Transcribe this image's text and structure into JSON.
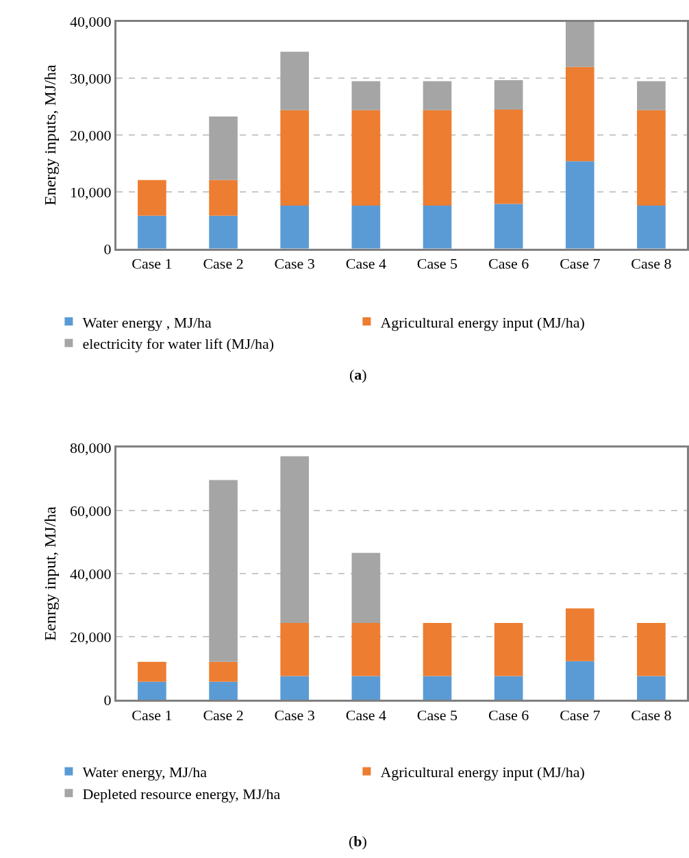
{
  "chart_data": [
    {
      "type": "bar",
      "stacked": true,
      "ylabel": "Energy inputs, MJ/ha",
      "categories": [
        "Case 1",
        "Case 2",
        "Case 3",
        "Case 4",
        "Case 5",
        "Case 6",
        "Case 7",
        "Case 8"
      ],
      "series": [
        {
          "name": "Water energy , MJ/ha",
          "color": "#5b9bd5",
          "values": [
            5800,
            5800,
            7600,
            7600,
            7600,
            7900,
            15400,
            7600
          ]
        },
        {
          "name": "Agricultural energy input (MJ/ha)",
          "color": "#ed7d31",
          "values": [
            6300,
            6300,
            16800,
            16800,
            16800,
            16600,
            16600,
            16800
          ]
        },
        {
          "name": "electricity for water lift (MJ/ha)",
          "color": "#a5a5a5",
          "values": [
            null,
            11200,
            10300,
            5100,
            5100,
            5200,
            8000,
            5100
          ]
        }
      ],
      "ylim": [
        0,
        40000
      ],
      "yticks": [
        {
          "value": 0,
          "label": "0"
        },
        {
          "value": 10000,
          "label": "10,000"
        },
        {
          "value": 20000,
          "label": "20,000"
        },
        {
          "value": 30000,
          "label": "30,000"
        },
        {
          "value": 40000,
          "label": "40,000"
        }
      ],
      "grid": "y",
      "legend": "bottom",
      "annotations": [
        "(a)"
      ]
    },
    {
      "type": "bar",
      "stacked": true,
      "ylabel": "Eenrgy input, MJ/ha",
      "categories": [
        "Case 1",
        "Case 2",
        "Case 3",
        "Case 4",
        "Case 5",
        "Case 6",
        "Case 7",
        "Case 8"
      ],
      "series": [
        {
          "name": "Water energy, MJ/ha",
          "color": "#5b9bd5",
          "values": [
            5800,
            5800,
            7600,
            7600,
            7600,
            7600,
            12300,
            7600
          ]
        },
        {
          "name": "Agricultural energy input (MJ/ha)",
          "color": "#ed7d31",
          "values": [
            6300,
            6300,
            16800,
            16800,
            16800,
            16800,
            16700,
            16800
          ]
        },
        {
          "name": "Depleted resource energy, MJ/ha",
          "color": "#a5a5a5",
          "values": [
            null,
            57600,
            52800,
            22200,
            null,
            null,
            null,
            null
          ]
        }
      ],
      "ylim": [
        0,
        80000
      ],
      "yticks": [
        {
          "value": 0,
          "label": "0"
        },
        {
          "value": 20000,
          "label": "20,000"
        },
        {
          "value": 40000,
          "label": "40,000"
        },
        {
          "value": 60000,
          "label": "60,000"
        },
        {
          "value": 80000,
          "label": "80,000"
        }
      ],
      "grid": "y",
      "legend": "bottom",
      "annotations": [
        "(b)"
      ]
    }
  ]
}
